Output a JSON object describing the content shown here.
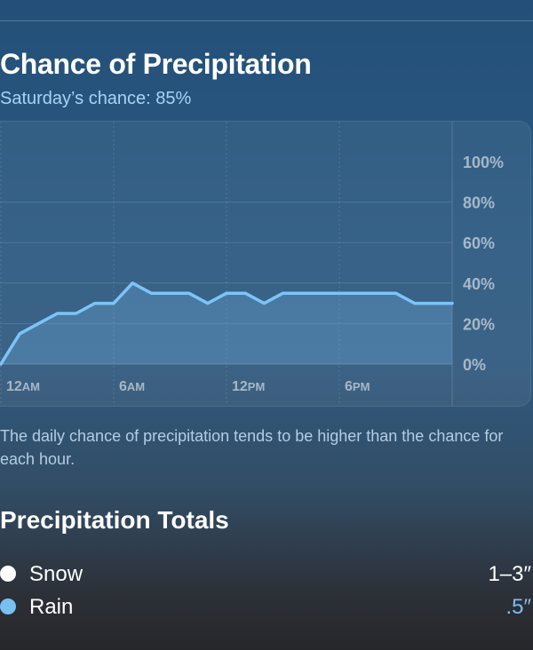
{
  "section": {
    "title": "Chance of Precipitation",
    "subtitle": "Saturday’s chance: 85%"
  },
  "chart_data": {
    "type": "area",
    "x": [
      0,
      1,
      2,
      3,
      4,
      5,
      6,
      7,
      8,
      9,
      10,
      11,
      12,
      13,
      14,
      15,
      16,
      17,
      18,
      19,
      20,
      21,
      22,
      23,
      24
    ],
    "x_tick_labels": [
      {
        "hour": 0,
        "num": "12",
        "suffix": "AM"
      },
      {
        "hour": 6,
        "num": "6",
        "suffix": "AM"
      },
      {
        "hour": 12,
        "num": "12",
        "suffix": "PM"
      },
      {
        "hour": 18,
        "num": "6",
        "suffix": "PM"
      }
    ],
    "series": [
      {
        "values": [
          0,
          15,
          20,
          25,
          25,
          30,
          30,
          40,
          35,
          35,
          35,
          30,
          35,
          35,
          30,
          35,
          35,
          35,
          35,
          35,
          35,
          35,
          30,
          30,
          30
        ]
      }
    ],
    "y_ticks": [
      "100%",
      "80%",
      "60%",
      "40%",
      "20%",
      "0%"
    ],
    "y_tick_values": [
      100,
      80,
      60,
      40,
      20,
      0
    ],
    "ylim": [
      0,
      100
    ],
    "xlim": [
      0,
      24
    ],
    "grid": true,
    "line_color": "#7cc4f8"
  },
  "note": "The daily chance of precipitation tends to be higher than the chance for each hour.",
  "totals": {
    "title": "Precipitation Totals",
    "items": [
      {
        "name": "Snow",
        "amount": "1–3″",
        "dot_color": "#ffffff",
        "amount_color": "#ffffff"
      },
      {
        "name": "Rain",
        "amount": ".5″",
        "dot_color": "#78bff2",
        "amount_color": "#78bff2"
      }
    ]
  }
}
